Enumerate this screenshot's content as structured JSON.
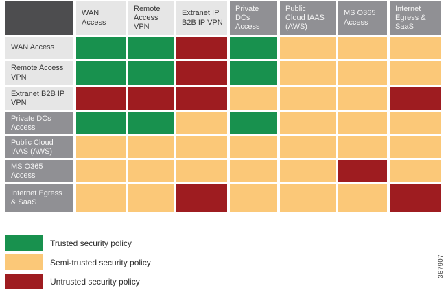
{
  "chart_data": {
    "type": "heatmap",
    "title": "",
    "columns": [
      "WAN Access",
      "Remote Access VPN",
      "Extranet IP B2B IP VPN",
      "Private DCs Access",
      "Public Cloud IAAS (AWS)",
      "MS O365 Access",
      "Internet Egress & SaaS"
    ],
    "rows": [
      "WAN Access",
      "Remote Access VPN",
      "Extranet B2B IP VPN",
      "Private DCs Access",
      "Public Cloud IAAS (AWS)",
      "MS O365 Access",
      "Internet Egress & SaaS"
    ],
    "values": [
      [
        "trusted",
        "trusted",
        "untrusted",
        "trusted",
        "semi-trusted",
        "semi-trusted",
        "semi-trusted"
      ],
      [
        "trusted",
        "trusted",
        "untrusted",
        "trusted",
        "semi-trusted",
        "semi-trusted",
        "semi-trusted"
      ],
      [
        "untrusted",
        "untrusted",
        "untrusted",
        "semi-trusted",
        "semi-trusted",
        "semi-trusted",
        "untrusted"
      ],
      [
        "trusted",
        "trusted",
        "semi-trusted",
        "trusted",
        "semi-trusted",
        "semi-trusted",
        "semi-trusted"
      ],
      [
        "semi-trusted",
        "semi-trusted",
        "semi-trusted",
        "semi-trusted",
        "semi-trusted",
        "semi-trusted",
        "semi-trusted"
      ],
      [
        "semi-trusted",
        "semi-trusted",
        "semi-trusted",
        "semi-trusted",
        "semi-trusted",
        "untrusted",
        "semi-trusted"
      ],
      [
        "semi-trusted",
        "semi-trusted",
        "untrusted",
        "semi-trusted",
        "semi-trusted",
        "semi-trusted",
        "untrusted"
      ]
    ],
    "legend": [
      {
        "value": "trusted",
        "label": "Trusted security policy",
        "color": "#18914E"
      },
      {
        "value": "semi-trusted",
        "label": "Semi-trusted security policy",
        "color": "#FBC878"
      },
      {
        "value": "untrusted",
        "label": "Untrusted security policy",
        "color": "#9E1C20"
      }
    ],
    "legend_position": "bottom-left",
    "grid": "off"
  },
  "matrix": {
    "column_headers": [
      {
        "label": "WAN\nAccess",
        "tone": "light"
      },
      {
        "label": "Remote\nAccess\nVPN",
        "tone": "light"
      },
      {
        "label": "Extranet IP\nB2B IP VPN",
        "tone": "light"
      },
      {
        "label": "Private DCs\nAccess",
        "tone": "dark"
      },
      {
        "label": "Public\nCloud IAAS\n(AWS)",
        "tone": "dark"
      },
      {
        "label": "MS O365\nAccess",
        "tone": "dark"
      },
      {
        "label": "Internet\nEgress &\nSaaS",
        "tone": "dark"
      }
    ],
    "row_headers": [
      {
        "label": "WAN Access",
        "tone": "light"
      },
      {
        "label": "Remote Access\nVPN",
        "tone": "light"
      },
      {
        "label": "Extranet B2B IP\nVPN",
        "tone": "light"
      },
      {
        "label": "Private DCs\nAccess",
        "tone": "dark"
      },
      {
        "label": "Public Cloud\nIAAS (AWS)",
        "tone": "dark"
      },
      {
        "label": "MS O365\nAccess",
        "tone": "dark"
      },
      {
        "label": "Internet Egress\n& SaaS",
        "tone": "dark"
      }
    ]
  },
  "palette": {
    "corner": "#4D4D4F",
    "header_light": "#E6E6E6",
    "header_light_text": "#3A3A3A",
    "header_dark": "#909094",
    "header_dark_text": "#F4F4F4",
    "page_bg": "#FFFFFF"
  },
  "figure_number": "367907"
}
